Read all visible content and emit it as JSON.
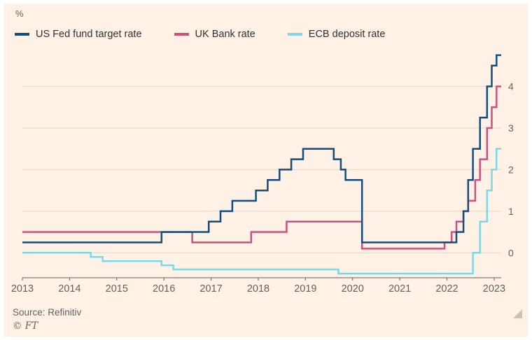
{
  "page": {
    "percent_label": "%",
    "source": "Source: Refinitiv",
    "copyright": "© FT"
  },
  "colors": {
    "background": "#FFF1E5",
    "grid": "#E4D5C7",
    "axis": "#66605B",
    "tick_text": "#66605B",
    "legend_text": "#33302E"
  },
  "chart_data": {
    "type": "line",
    "line_style": "step-after",
    "title": "",
    "xlabel": "",
    "ylabel": "%",
    "grid": "horizontal",
    "legend_position": "top",
    "xlim": [
      2013,
      2023.15
    ],
    "ylim": [
      -0.6,
      4.85
    ],
    "xticks": [
      2013,
      2014,
      2015,
      2016,
      2017,
      2018,
      2019,
      2020,
      2021,
      2022,
      2023
    ],
    "yticks": [
      0,
      1,
      2,
      3,
      4
    ],
    "series": [
      {
        "name": "ECB deposit rate",
        "color": "#7CD7E7",
        "points": [
          [
            2013.0,
            0.0
          ],
          [
            2014.45,
            -0.1
          ],
          [
            2014.7,
            -0.2
          ],
          [
            2015.95,
            -0.3
          ],
          [
            2016.2,
            -0.4
          ],
          [
            2019.7,
            -0.5
          ],
          [
            2022.55,
            0.0
          ],
          [
            2022.7,
            0.75
          ],
          [
            2022.85,
            1.5
          ],
          [
            2022.95,
            2.0
          ],
          [
            2023.05,
            2.5
          ]
        ]
      },
      {
        "name": "UK Bank rate",
        "color": "#C9537E",
        "points": [
          [
            2013.0,
            0.5
          ],
          [
            2016.6,
            0.25
          ],
          [
            2017.85,
            0.5
          ],
          [
            2018.6,
            0.75
          ],
          [
            2020.2,
            0.1
          ],
          [
            2021.95,
            0.25
          ],
          [
            2022.1,
            0.5
          ],
          [
            2022.2,
            0.75
          ],
          [
            2022.35,
            1.0
          ],
          [
            2022.45,
            1.25
          ],
          [
            2022.6,
            1.75
          ],
          [
            2022.7,
            2.25
          ],
          [
            2022.85,
            3.0
          ],
          [
            2022.95,
            3.5
          ],
          [
            2023.05,
            4.0
          ]
        ]
      },
      {
        "name": "US Fed fund target rate",
        "color": "#124D7D",
        "points": [
          [
            2013.0,
            0.25
          ],
          [
            2015.95,
            0.5
          ],
          [
            2016.95,
            0.75
          ],
          [
            2017.2,
            1.0
          ],
          [
            2017.45,
            1.25
          ],
          [
            2017.95,
            1.5
          ],
          [
            2018.2,
            1.75
          ],
          [
            2018.45,
            2.0
          ],
          [
            2018.7,
            2.25
          ],
          [
            2018.95,
            2.5
          ],
          [
            2019.6,
            2.25
          ],
          [
            2019.75,
            2.0
          ],
          [
            2019.85,
            1.75
          ],
          [
            2020.2,
            0.25
          ],
          [
            2022.2,
            0.5
          ],
          [
            2022.35,
            1.0
          ],
          [
            2022.45,
            1.75
          ],
          [
            2022.55,
            2.5
          ],
          [
            2022.7,
            3.25
          ],
          [
            2022.85,
            4.0
          ],
          [
            2022.95,
            4.5
          ],
          [
            2023.05,
            4.75
          ]
        ]
      }
    ],
    "legend_order": [
      "US Fed fund target rate",
      "UK Bank rate",
      "ECB deposit rate"
    ]
  }
}
